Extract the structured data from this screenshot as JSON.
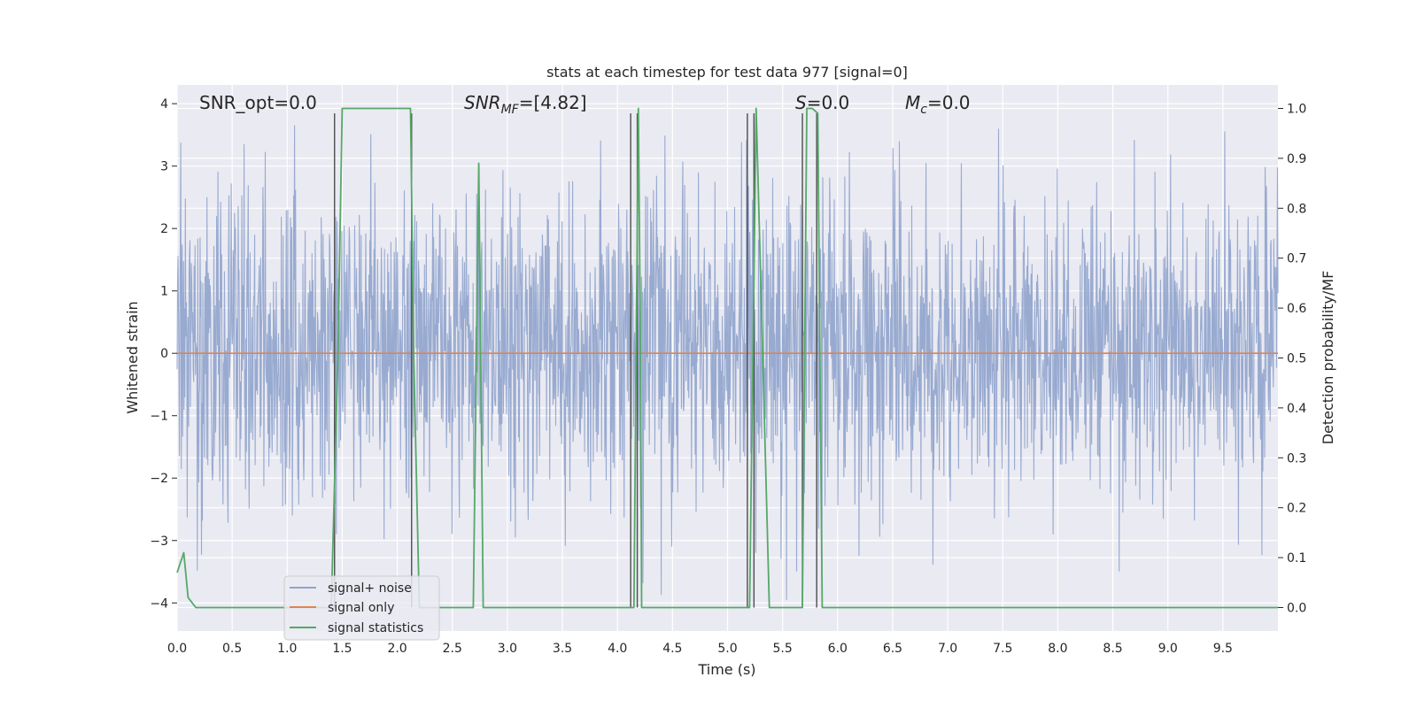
{
  "chart_data": {
    "type": "line",
    "title": "stats at each timestep for test data 977 [signal=0]",
    "xlabel": "Time (s)",
    "ylabel": "Whitened strain",
    "y2label": "Detection probability/MF",
    "xlim": [
      0,
      10
    ],
    "ylim": [
      -4.45,
      4.3
    ],
    "y2lim": [
      -0.047,
      1.047
    ],
    "xticks": [
      0.0,
      0.5,
      1.0,
      1.5,
      2.0,
      2.5,
      3.0,
      3.5,
      4.0,
      4.5,
      5.0,
      5.5,
      6.0,
      6.5,
      7.0,
      7.5,
      8.0,
      8.5,
      9.0,
      9.5
    ],
    "xtick_labels": [
      "0.0",
      "0.5",
      "1.0",
      "1.5",
      "2.0",
      "2.5",
      "3.0",
      "3.5",
      "4.0",
      "4.5",
      "5.0",
      "5.5",
      "6.0",
      "6.5",
      "7.0",
      "7.5",
      "8.0",
      "8.5",
      "9.0",
      "9.5"
    ],
    "yticks": [
      4,
      3,
      2,
      1,
      0,
      -1,
      -2,
      -3,
      -4
    ],
    "ytick_labels": [
      "4",
      "3",
      "2",
      "1",
      "0",
      "−1",
      "−2",
      "−3",
      "−4"
    ],
    "y2ticks": [
      1.0,
      0.9,
      0.8,
      0.7,
      0.6,
      0.5,
      0.4,
      0.3,
      0.2,
      0.1,
      0.0
    ],
    "y2tick_labels": [
      "1.0",
      "0.9",
      "0.8",
      "0.7",
      "0.6",
      "0.5",
      "0.4",
      "0.3",
      "0.2",
      "0.1",
      "0.0"
    ],
    "grid": true,
    "legend_position": "lower-left",
    "annotations": {
      "snr_opt": "SNR_opt=0.0",
      "snr_mf_main": "SNR",
      "snr_mf_sub": "MF",
      "snr_mf_value": "=[4.82]",
      "s_main": "S",
      "s_value": "=0.0",
      "mc_main": "M",
      "mc_sub": "c",
      "mc_value": "=0.0"
    },
    "series": [
      {
        "name": "signal+ noise",
        "color": "#8fa3cc",
        "axis": "left",
        "kind": "noise",
        "envelope_typical": [
          -2.0,
          2.2
        ],
        "envelope_peak": [
          -4.1,
          3.9
        ]
      },
      {
        "name": "signal only",
        "color": "#dd8452",
        "axis": "left",
        "x": [
          0,
          10
        ],
        "y": [
          0,
          0
        ]
      },
      {
        "name": "signal statistics",
        "color": "#55a868",
        "axis": "right",
        "x": [
          0.0,
          0.06,
          0.1,
          0.17,
          0.2,
          0.5,
          1.0,
          1.4,
          1.46,
          1.5,
          1.55,
          2.12,
          2.15,
          2.2,
          2.3,
          2.4,
          2.45,
          2.5,
          2.6,
          2.69,
          2.74,
          2.78,
          2.8,
          3.0,
          3.5,
          4.0,
          4.15,
          4.19,
          4.21,
          4.22,
          4.25,
          4.5,
          5.0,
          5.2,
          5.23,
          5.26,
          5.32,
          5.38,
          5.5,
          5.68,
          5.72,
          5.77,
          5.82,
          5.86,
          5.9,
          6.0,
          7.0,
          8.0,
          9.0,
          10.0
        ],
        "y": [
          0.07,
          0.11,
          0.02,
          0.0,
          0.0,
          0.0,
          0.0,
          0.0,
          0.5,
          1.0,
          1.0,
          1.0,
          0.5,
          0.0,
          0.0,
          0.0,
          0.0,
          0.0,
          0.0,
          0.0,
          0.89,
          0.0,
          0.0,
          0.0,
          0.0,
          0.0,
          0.0,
          1.0,
          0.5,
          0.0,
          0.0,
          0.0,
          0.0,
          0.0,
          0.5,
          1.0,
          0.5,
          0.0,
          0.0,
          0.0,
          1.0,
          1.0,
          0.99,
          0.0,
          0.0,
          0.0,
          0.0,
          0.0,
          0.0,
          0.0
        ]
      }
    ],
    "vertical_markers": {
      "color": "#4d4d4d",
      "x": [
        1.43,
        2.13,
        4.12,
        4.18,
        5.18,
        5.24,
        5.68,
        5.81
      ]
    }
  }
}
